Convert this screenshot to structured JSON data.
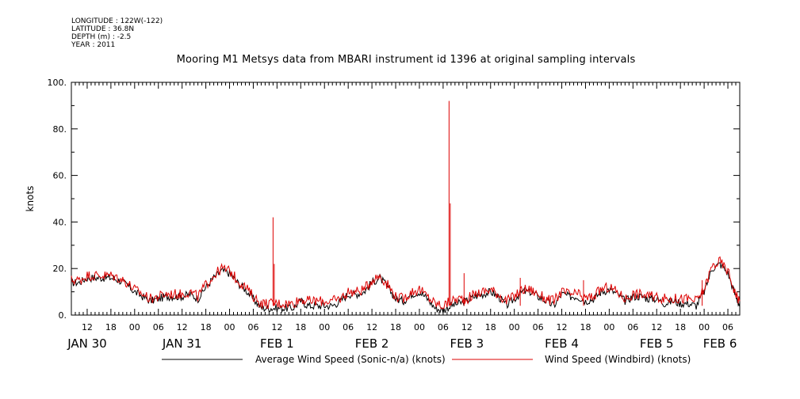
{
  "meta": {
    "longitude": "LONGITUDE : 122W(-122)",
    "latitude": "LATITUDE : 36.8N",
    "depth": "DEPTH (m) : -2.5",
    "year": "YEAR : 2011"
  },
  "chart_data": {
    "type": "line",
    "title": "Mooring M1 Metsys data from MBARI instrument id 1396 at original sampling intervals",
    "ylabel": "knots",
    "xlabel": "",
    "ylim": [
      0,
      100
    ],
    "yticks": [
      "0.",
      "20.",
      "40.",
      "60.",
      "80.",
      "100."
    ],
    "xlim_hours": [
      8,
      177
    ],
    "hour_tick_labels": [
      "12",
      "18",
      "00",
      "06",
      "12",
      "18",
      "00",
      "06",
      "12",
      "18",
      "00",
      "06",
      "12",
      "18",
      "00",
      "06",
      "12",
      "18",
      "00",
      "06",
      "12",
      "18",
      "00",
      "06",
      "12",
      "18",
      "00",
      "06"
    ],
    "day_labels": [
      {
        "label": "JAN 30",
        "at_hour": 12
      },
      {
        "label": "JAN 31",
        "at_hour": 36
      },
      {
        "label": "FEB  1",
        "at_hour": 60
      },
      {
        "label": "FEB  2",
        "at_hour": 84
      },
      {
        "label": "FEB  3",
        "at_hour": 108
      },
      {
        "label": "FEB  4",
        "at_hour": 132
      },
      {
        "label": "FEB  5",
        "at_hour": 156
      },
      {
        "label": "FEB  6",
        "at_hour": 172
      }
    ],
    "grid": false,
    "legend_position": "bottom",
    "series": [
      {
        "name": "Average Wind Speed (Sonic-n/a) (knots)",
        "color": "#000000",
        "x": [
          8,
          10,
          12,
          14,
          16,
          18,
          20,
          22,
          24,
          26,
          28,
          30,
          32,
          34,
          36,
          38,
          40,
          42,
          44,
          46,
          48,
          50,
          52,
          54,
          56,
          58,
          60,
          62,
          64,
          66,
          68,
          70,
          72,
          74,
          76,
          78,
          80,
          82,
          84,
          86,
          88,
          90,
          92,
          94,
          96,
          98,
          100,
          102,
          104,
          106,
          108,
          110,
          112,
          114,
          116,
          118,
          120,
          122,
          124,
          126,
          128,
          130,
          132,
          134,
          136,
          138,
          140,
          142,
          144,
          146,
          148,
          150,
          152,
          154,
          156,
          158,
          160,
          162,
          164,
          166,
          168,
          170,
          172,
          174,
          176,
          177
        ],
        "values": [
          14,
          14,
          16,
          16,
          16,
          16,
          15,
          13,
          10,
          8,
          6,
          7,
          8,
          8,
          8,
          9,
          7,
          12,
          16,
          19,
          18,
          14,
          11,
          7,
          3,
          3,
          3,
          3,
          3,
          6,
          4,
          4,
          4,
          4,
          6,
          9,
          9,
          10,
          14,
          16,
          12,
          7,
          6,
          9,
          10,
          7,
          3,
          2,
          4,
          5,
          6,
          8,
          9,
          10,
          8,
          4,
          7,
          10,
          10,
          8,
          6,
          4,
          9,
          8,
          8,
          6,
          7,
          10,
          11,
          9,
          6,
          8,
          8,
          7,
          7,
          5,
          6,
          5,
          5,
          4,
          10,
          20,
          22,
          18,
          8,
          4
        ]
      },
      {
        "name": "Wind Speed (Windbird) (knots)",
        "color": "#dd0000",
        "x": [
          8,
          10,
          12,
          14,
          16,
          18,
          20,
          22,
          24,
          26,
          28,
          30,
          32,
          34,
          36,
          38,
          40,
          42,
          44,
          46,
          48,
          50,
          52,
          54,
          56,
          58,
          60,
          62,
          64,
          66,
          68,
          70,
          72,
          74,
          76,
          78,
          80,
          82,
          84,
          86,
          88,
          90,
          92,
          94,
          96,
          98,
          100,
          102,
          104,
          106,
          108,
          110,
          112,
          114,
          116,
          118,
          120,
          122,
          124,
          126,
          128,
          130,
          132,
          134,
          136,
          138,
          140,
          142,
          144,
          146,
          148,
          150,
          152,
          154,
          156,
          158,
          160,
          162,
          164,
          166,
          168,
          170,
          172,
          174,
          176,
          177
        ],
        "values": [
          15,
          15,
          17,
          17,
          17,
          17,
          16,
          14,
          11,
          9,
          7,
          8,
          9,
          9,
          9,
          10,
          8,
          13,
          17,
          20,
          19,
          15,
          12,
          8,
          5,
          5,
          5,
          5,
          5,
          7,
          6,
          6,
          6,
          6,
          7,
          10,
          10,
          11,
          15,
          17,
          13,
          8,
          7,
          10,
          11,
          8,
          5,
          4,
          6,
          7,
          7,
          9,
          10,
          11,
          9,
          6,
          8,
          11,
          11,
          9,
          7,
          6,
          10,
          9,
          9,
          7,
          8,
          11,
          12,
          10,
          7,
          9,
          9,
          8,
          8,
          7,
          7,
          7,
          7,
          6,
          11,
          21,
          23,
          19,
          9,
          6
        ],
        "spikes": [
          {
            "x": 59,
            "value": 42
          },
          {
            "x": 59.3,
            "value": 22
          },
          {
            "x": 103.5,
            "value": 92
          },
          {
            "x": 103.8,
            "value": 48
          },
          {
            "x": 107.3,
            "value": 18
          },
          {
            "x": 121.5,
            "value": 16
          },
          {
            "x": 137.5,
            "value": 15
          },
          {
            "x": 167.5,
            "value": 15
          }
        ]
      }
    ]
  }
}
